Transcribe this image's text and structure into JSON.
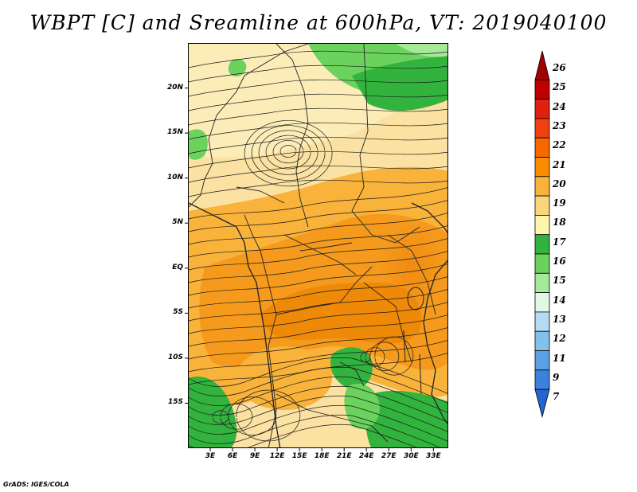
{
  "title": "WBPT [C] and Sreamline at 600hPa, VT: 2019040100",
  "footer": "GrADS: IGES/COLA",
  "map": {
    "lat_range": [
      -20,
      25
    ],
    "lon_range": [
      0,
      35
    ],
    "lat_ticks": [
      {
        "lat": 20,
        "label": "20N"
      },
      {
        "lat": 15,
        "label": "15N"
      },
      {
        "lat": 10,
        "label": "10N"
      },
      {
        "lat": 5,
        "label": "5N"
      },
      {
        "lat": 0,
        "label": "EQ"
      },
      {
        "lat": -5,
        "label": "5S"
      },
      {
        "lat": -10,
        "label": "10S"
      },
      {
        "lat": -15,
        "label": "15S"
      }
    ],
    "lon_ticks": [
      {
        "lon": 3,
        "label": "3E"
      },
      {
        "lon": 6,
        "label": "6E"
      },
      {
        "lon": 9,
        "label": "9E"
      },
      {
        "lon": 12,
        "label": "12E"
      },
      {
        "lon": 15,
        "label": "15E"
      },
      {
        "lon": 18,
        "label": "18E"
      },
      {
        "lon": 21,
        "label": "21E"
      },
      {
        "lon": 24,
        "label": "24E"
      },
      {
        "lon": 27,
        "label": "27E"
      },
      {
        "lon": 30,
        "label": "30E"
      },
      {
        "lon": 33,
        "label": "33E"
      }
    ],
    "variable": "Wet-bulb potential temperature (C)",
    "field_dominant_bands": [
      {
        "region": "north (approx. 10N-25N)",
        "value_range": "18-19"
      },
      {
        "region": "northeast corner",
        "value_range": "16-17"
      },
      {
        "region": "equatorial belt (approx. 10S-8N)",
        "value_range": "20-22"
      },
      {
        "region": "southern margins (15S-20S)",
        "value_range": "16-18"
      }
    ],
    "features": [
      {
        "name": "cyclonic streamline eddy",
        "location": "near 13E, 14N"
      },
      {
        "name": "streamline convergence",
        "location": "near 23E, 14S"
      }
    ]
  },
  "colorbar": {
    "levels": [
      {
        "label": "26",
        "color": "#a00000"
      },
      {
        "label": "25",
        "color": "#c00000"
      },
      {
        "label": "24",
        "color": "#e02010"
      },
      {
        "label": "23",
        "color": "#f04010"
      },
      {
        "label": "22",
        "color": "#f86800"
      },
      {
        "label": "21",
        "color": "#fa8c00"
      },
      {
        "label": "20",
        "color": "#f9b23a"
      },
      {
        "label": "19",
        "color": "#fbd57b"
      },
      {
        "label": "18",
        "color": "#fff6ae"
      },
      {
        "label": "17",
        "color": "#32b33e"
      },
      {
        "label": "16",
        "color": "#6cd25e"
      },
      {
        "label": "15",
        "color": "#a8e89a"
      },
      {
        "label": "14",
        "color": "#e2f8e6"
      },
      {
        "label": "13",
        "color": "#b4dcf4"
      },
      {
        "label": "12",
        "color": "#84c0ec"
      },
      {
        "label": "11",
        "color": "#5ca0e4"
      },
      {
        "label": "9",
        "color": "#3c82dc"
      },
      {
        "label": "7",
        "color": "#2464d0"
      }
    ]
  }
}
